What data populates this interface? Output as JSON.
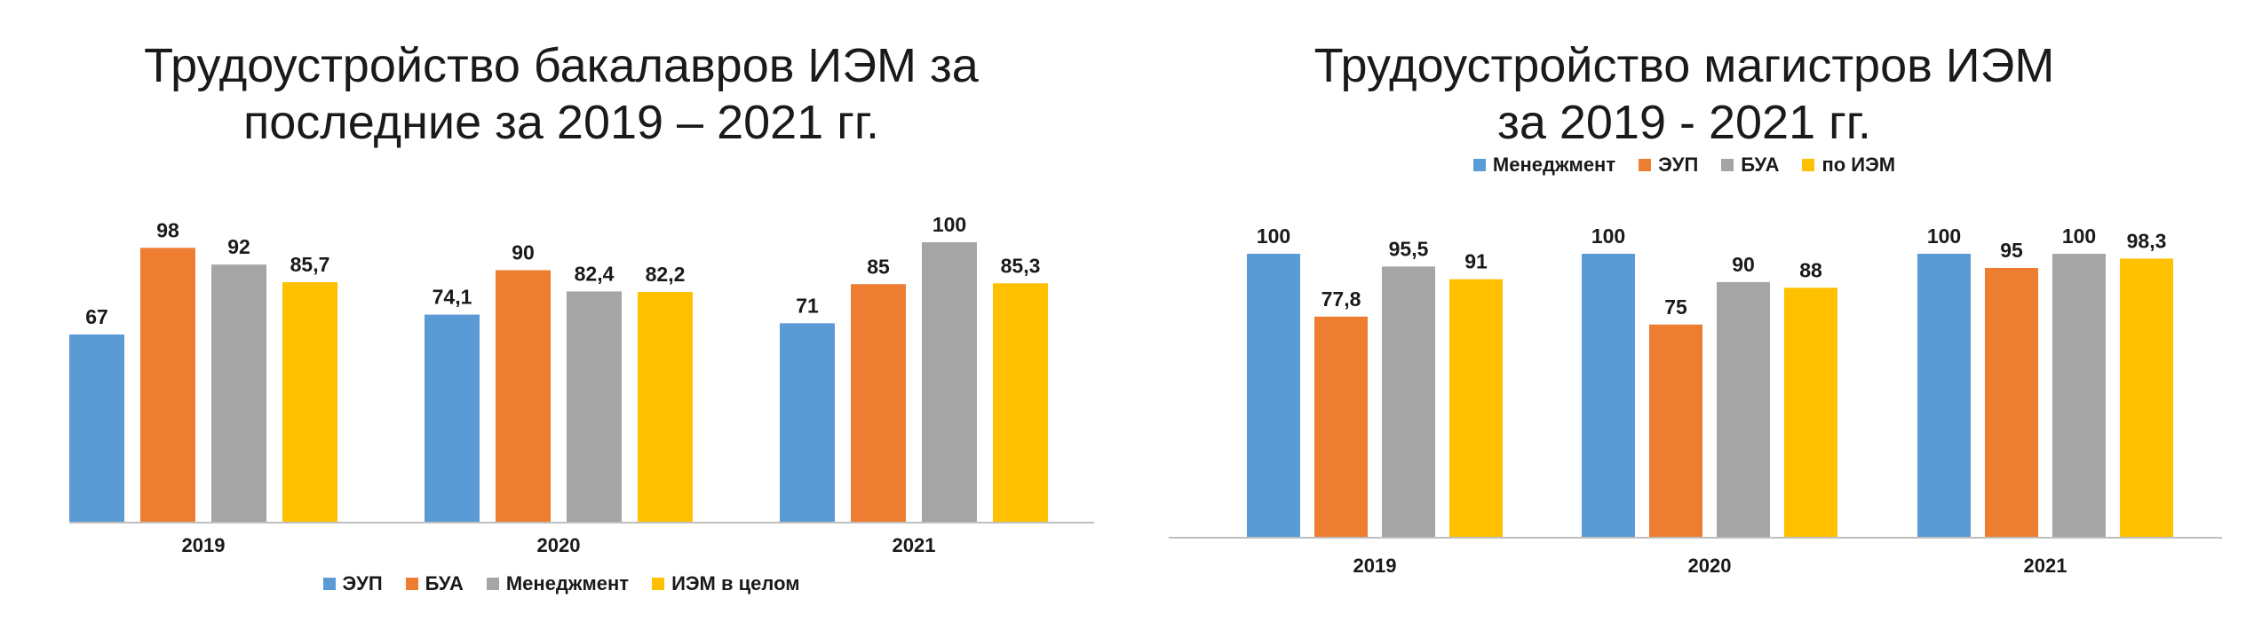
{
  "chart_data": [
    {
      "type": "bar",
      "title_lines": [
        "Трудоустройство бакалавров ИЭМ за",
        "последние  за 2019 – 2021 гг."
      ],
      "categories": [
        "2019",
        "2020",
        "2021"
      ],
      "series": [
        {
          "name": "ЭУП",
          "color": "#5B9BD5",
          "values": [
            67,
            74.1,
            71
          ],
          "labels": [
            "67",
            "74,1",
            "71"
          ]
        },
        {
          "name": "БУА",
          "color": "#ED7D31",
          "values": [
            98,
            90,
            85
          ],
          "labels": [
            "98",
            "90",
            "85"
          ]
        },
        {
          "name": "Менеджмент",
          "color": "#A5A5A5",
          "values": [
            92,
            82.4,
            100
          ],
          "labels": [
            "92",
            "82,4",
            "100"
          ]
        },
        {
          "name": "ИЭМ в целом",
          "color": "#FFC000",
          "values": [
            85.7,
            82.2,
            85.3
          ],
          "labels": [
            "85,7",
            "82,2",
            "85,3"
          ]
        }
      ],
      "legend_position": "bottom",
      "ylim": [
        0,
        100
      ],
      "grid": false
    },
    {
      "type": "bar",
      "title_lines": [
        "Трудоустройство магистров ИЭМ",
        "за 2019 - 2021 гг."
      ],
      "categories": [
        "2019",
        "2020",
        "2021"
      ],
      "series": [
        {
          "name": "Менеджмент",
          "color": "#5B9BD5",
          "values": [
            100,
            100,
            100
          ],
          "labels": [
            "100",
            "100",
            "100"
          ]
        },
        {
          "name": "ЭУП",
          "color": "#ED7D31",
          "values": [
            77.8,
            75,
            95
          ],
          "labels": [
            "77,8",
            "75",
            "95"
          ]
        },
        {
          "name": "БУА",
          "color": "#A5A5A5",
          "values": [
            95.5,
            90,
            100
          ],
          "labels": [
            "95,5",
            "90",
            "100"
          ]
        },
        {
          "name": "по ИЭМ",
          "color": "#FFC000",
          "values": [
            91,
            88,
            98.3
          ],
          "labels": [
            "91",
            "88",
            "98,3"
          ]
        }
      ],
      "legend_position": "top",
      "ylim": [
        0,
        100
      ],
      "grid": false
    }
  ]
}
